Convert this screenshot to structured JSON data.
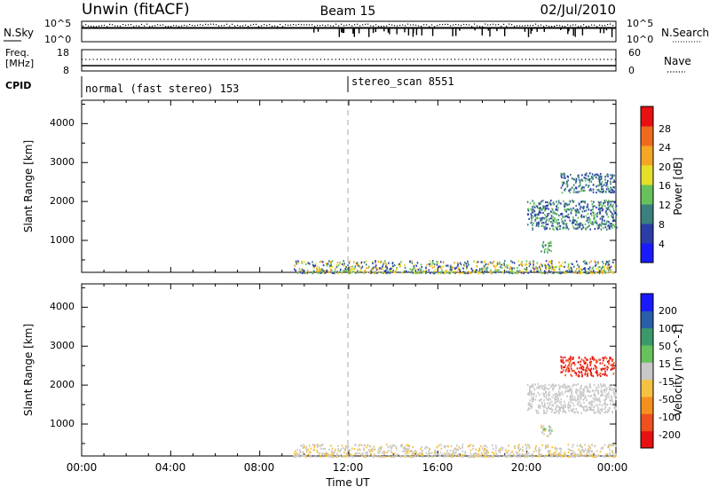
{
  "header": {
    "radar": "Unwin (fitACF)",
    "beam": "Beam 15",
    "date": "02/Jul/2010"
  },
  "noise_panel": {
    "left_label": "N.Sky",
    "left_ticks": [
      "10^5",
      "10^0"
    ],
    "right_ticks": [
      "10^5",
      "10^0"
    ],
    "right_label": "N.Search"
  },
  "freq_panel": {
    "left_label_1": "Freq.",
    "left_label_2": "[MHz]",
    "left_ticks": [
      "18",
      "8"
    ],
    "right_ticks": [
      "60",
      "0"
    ],
    "right_label": "Nave"
  },
  "cpid": {
    "label": "CPID",
    "segments": [
      "normal (fast stereo) 153",
      "stereo_scan 8551"
    ],
    "segment_start_hours": [
      0,
      12
    ]
  },
  "chart_data": [
    {
      "type": "heatmap",
      "ylabel": "Slant Range [km]",
      "xlabel": "",
      "x_ticks": [
        "00:00",
        "04:00",
        "08:00",
        "12:00",
        "16:00",
        "20:00",
        "00:00"
      ],
      "y_ticks": [
        "1000",
        "2000",
        "3000",
        "4000"
      ],
      "xlim_hours": [
        0,
        24
      ],
      "ylim_km": [
        180,
        4600
      ],
      "colorbar": {
        "label": "Power [dB]",
        "ticks": [
          "28",
          "24",
          "20",
          "16",
          "12",
          "8",
          "4"
        ],
        "range": [
          0,
          32
        ],
        "colors": [
          "#1a1aff",
          "#2b3ea8",
          "#3c7f7f",
          "#68c25b",
          "#e6e02a",
          "#f5a623",
          "#f06a1e",
          "#e81010"
        ]
      },
      "scatter_regions": [
        {
          "name": "near-range",
          "t": [
            9.5,
            24
          ],
          "r": [
            180,
            500
          ],
          "values": [
            4,
            24
          ]
        },
        {
          "name": "band-1600",
          "t": [
            20.0,
            24
          ],
          "r": [
            1300,
            2050
          ],
          "values": [
            4,
            16
          ]
        },
        {
          "name": "far-2500",
          "t": [
            21.5,
            23.9
          ],
          "r": [
            2250,
            2750
          ],
          "values": [
            4,
            14
          ]
        },
        {
          "name": "patch-800",
          "t": [
            20.6,
            21.1
          ],
          "r": [
            700,
            1000
          ],
          "values": [
            8,
            16
          ]
        }
      ]
    },
    {
      "type": "heatmap",
      "ylabel": "Slant Range [km]",
      "xlabel": "Time UT",
      "x_ticks": [
        "00:00",
        "04:00",
        "08:00",
        "12:00",
        "16:00",
        "20:00",
        "00:00"
      ],
      "y_ticks": [
        "1000",
        "2000",
        "3000",
        "4000"
      ],
      "xlim_hours": [
        0,
        24
      ],
      "ylim_km": [
        180,
        4600
      ],
      "colorbar": {
        "label": "Velocity [m s^-1]",
        "ticks": [
          "200",
          "100",
          "50",
          "15",
          "-15",
          "-50",
          "-100",
          "-200"
        ],
        "range": [
          -250,
          250
        ],
        "colors": [
          "#e81010",
          "#f0501e",
          "#f5901e",
          "#f5c242",
          "#c8c8c8",
          "#68c25b",
          "#3c9a6a",
          "#2b5ea8",
          "#1a1aff"
        ]
      },
      "scatter_regions": [
        {
          "name": "near-range",
          "t": [
            9.5,
            24
          ],
          "r": [
            180,
            500
          ],
          "values": [
            -50,
            15
          ]
        },
        {
          "name": "band-1600",
          "t": [
            20.0,
            24
          ],
          "r": [
            1300,
            2050
          ],
          "values": [
            -15,
            15
          ]
        },
        {
          "name": "far-2500",
          "t": [
            21.5,
            23.9
          ],
          "r": [
            2250,
            2750
          ],
          "values": [
            -250,
            -150
          ]
        },
        {
          "name": "patch-800",
          "t": [
            20.6,
            21.1
          ],
          "r": [
            700,
            1000
          ],
          "values": [
            -60,
            60
          ]
        }
      ]
    }
  ]
}
